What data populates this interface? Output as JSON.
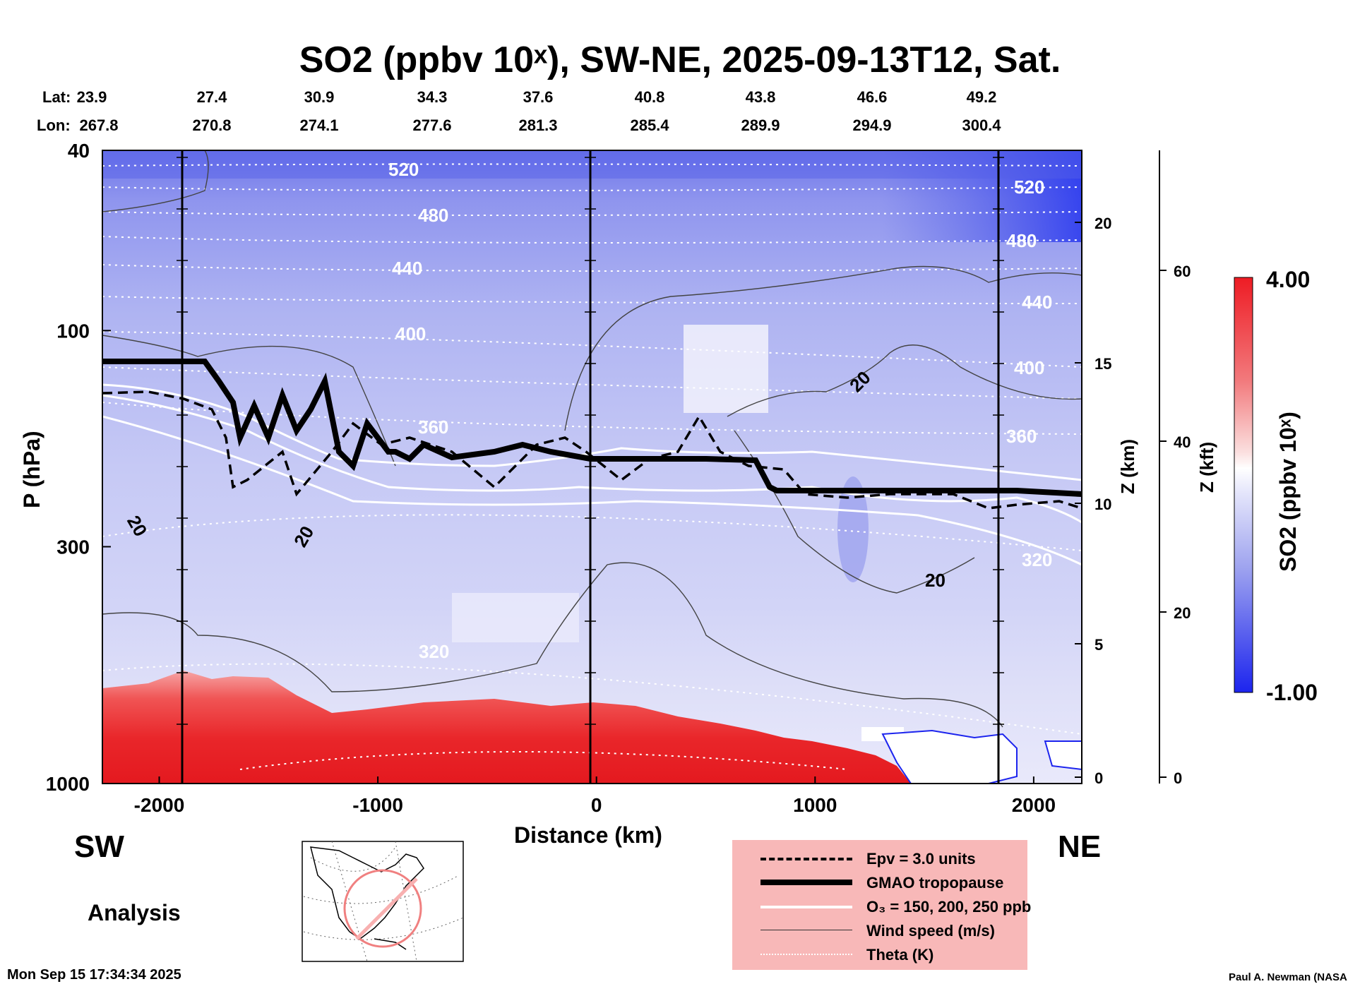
{
  "title": "SO2 (ppbv 10ˣ), SW-NE, 2025-09-13T12, Sat.",
  "header_rows": {
    "lat_label": "Lat:",
    "lon_label": "Lon:",
    "lat": [
      "23.9",
      "27.4",
      "30.9",
      "34.3",
      "37.6",
      "40.8",
      "43.8",
      "46.6",
      "49.2"
    ],
    "lon": [
      "267.8",
      "270.8",
      "274.1",
      "277.6",
      "281.3",
      "285.4",
      "289.9",
      "294.9",
      "300.4"
    ]
  },
  "labels": {
    "sw": "SW",
    "ne": "NE",
    "analysis": "Analysis",
    "timestamp": "Mon Sep 15 17:34:34 2025",
    "credit": "Paul A. Newman (NASA"
  },
  "colorbar": {
    "max_label": "4.00",
    "min_label": "-1.00",
    "title": "SO2 (ppbv 10ˣ)",
    "colors": {
      "high": "#ee1c24",
      "mid": "#ffffff",
      "low": "#1c24ee"
    }
  },
  "legend": {
    "items": [
      {
        "label": "Epv = 3.0 units",
        "style": "dashed"
      },
      {
        "label": "GMAO tropopause",
        "style": "thick"
      },
      {
        "label": "O₃ = 150, 200, 250 ppb",
        "style": "white"
      },
      {
        "label": "Wind speed (m/s)",
        "style": "thin"
      },
      {
        "label": "Theta (K)",
        "style": "dotted"
      }
    ]
  },
  "chart_data": {
    "type": "heatmap",
    "title": "SO2 (ppbv 10ˣ), SW-NE, 2025-09-13T12, Sat.",
    "xlabel": "Distance (km)",
    "ylabel": "P (hPa)",
    "z_km_label": "Z (km)",
    "z_kft_label": "Z (kft)",
    "x_ticks": [
      "-2000",
      "-1000",
      "0",
      "1000",
      "2000"
    ],
    "y_ticks": [
      "40",
      "100",
      "300",
      "1000"
    ],
    "z_km_ticks": [
      "20",
      "15",
      "10",
      "5",
      "0"
    ],
    "z_kft_ticks": [
      "60",
      "40",
      "20",
      "0"
    ],
    "xlim": [
      -2260,
      2220
    ],
    "ylim": [
      1000,
      40
    ],
    "yscale": "log",
    "colorbar_range": [
      -1.0,
      4.0
    ],
    "theta_contour_labels": [
      "520",
      "480",
      "440",
      "400",
      "360",
      "320"
    ],
    "wind_contour_labels": [
      "20",
      "20",
      "20",
      "20"
    ],
    "notes": "Field is low SO2 (blue) aloft and high SO2 (red) in the boundary layer below ~700 hPa."
  }
}
